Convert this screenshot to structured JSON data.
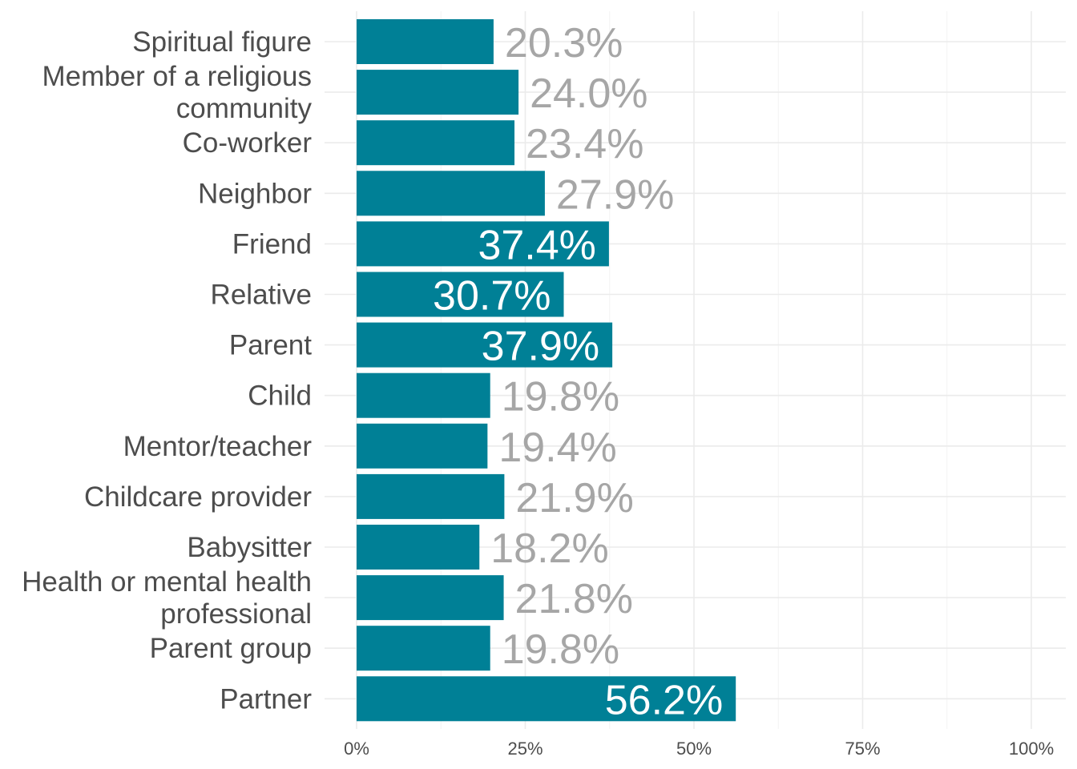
{
  "chart_data": {
    "type": "bar",
    "orientation": "horizontal",
    "categories": [
      [
        "Spiritual figure"
      ],
      [
        "Member of a religious",
        "community"
      ],
      [
        "Co-worker"
      ],
      [
        "Neighbor"
      ],
      [
        "Friend"
      ],
      [
        "Relative"
      ],
      [
        "Parent"
      ],
      [
        "Child"
      ],
      [
        "Mentor/teacher"
      ],
      [
        "Childcare provider"
      ],
      [
        "Babysitter"
      ],
      [
        "Health or mental health",
        "professional"
      ],
      [
        "Parent group"
      ],
      [
        "Partner"
      ]
    ],
    "values": [
      20.3,
      24.0,
      23.4,
      27.9,
      37.4,
      30.7,
      37.9,
      19.8,
      19.4,
      21.9,
      18.2,
      21.8,
      19.8,
      56.2
    ],
    "value_labels": [
      "20.3%",
      "24.0%",
      "23.4%",
      "27.9%",
      "37.4%",
      "30.7%",
      "37.9%",
      "19.8%",
      "19.4%",
      "21.9%",
      "18.2%",
      "21.8%",
      "19.8%",
      "56.2%"
    ],
    "label_inside": [
      false,
      false,
      false,
      false,
      true,
      true,
      true,
      false,
      false,
      false,
      false,
      false,
      false,
      true
    ],
    "xlim": [
      0,
      100
    ],
    "x_ticks": [
      0,
      25,
      50,
      75,
      100
    ],
    "x_tick_labels": [
      "0%",
      "25%",
      "50%",
      "75%",
      "100%"
    ],
    "title": "",
    "xlabel": "",
    "ylabel": "",
    "grid": true,
    "legend": "none",
    "colors": {
      "bar": "#008096",
      "label_inside": "#ffffff",
      "label_outside": "#a6a6a6"
    }
  }
}
